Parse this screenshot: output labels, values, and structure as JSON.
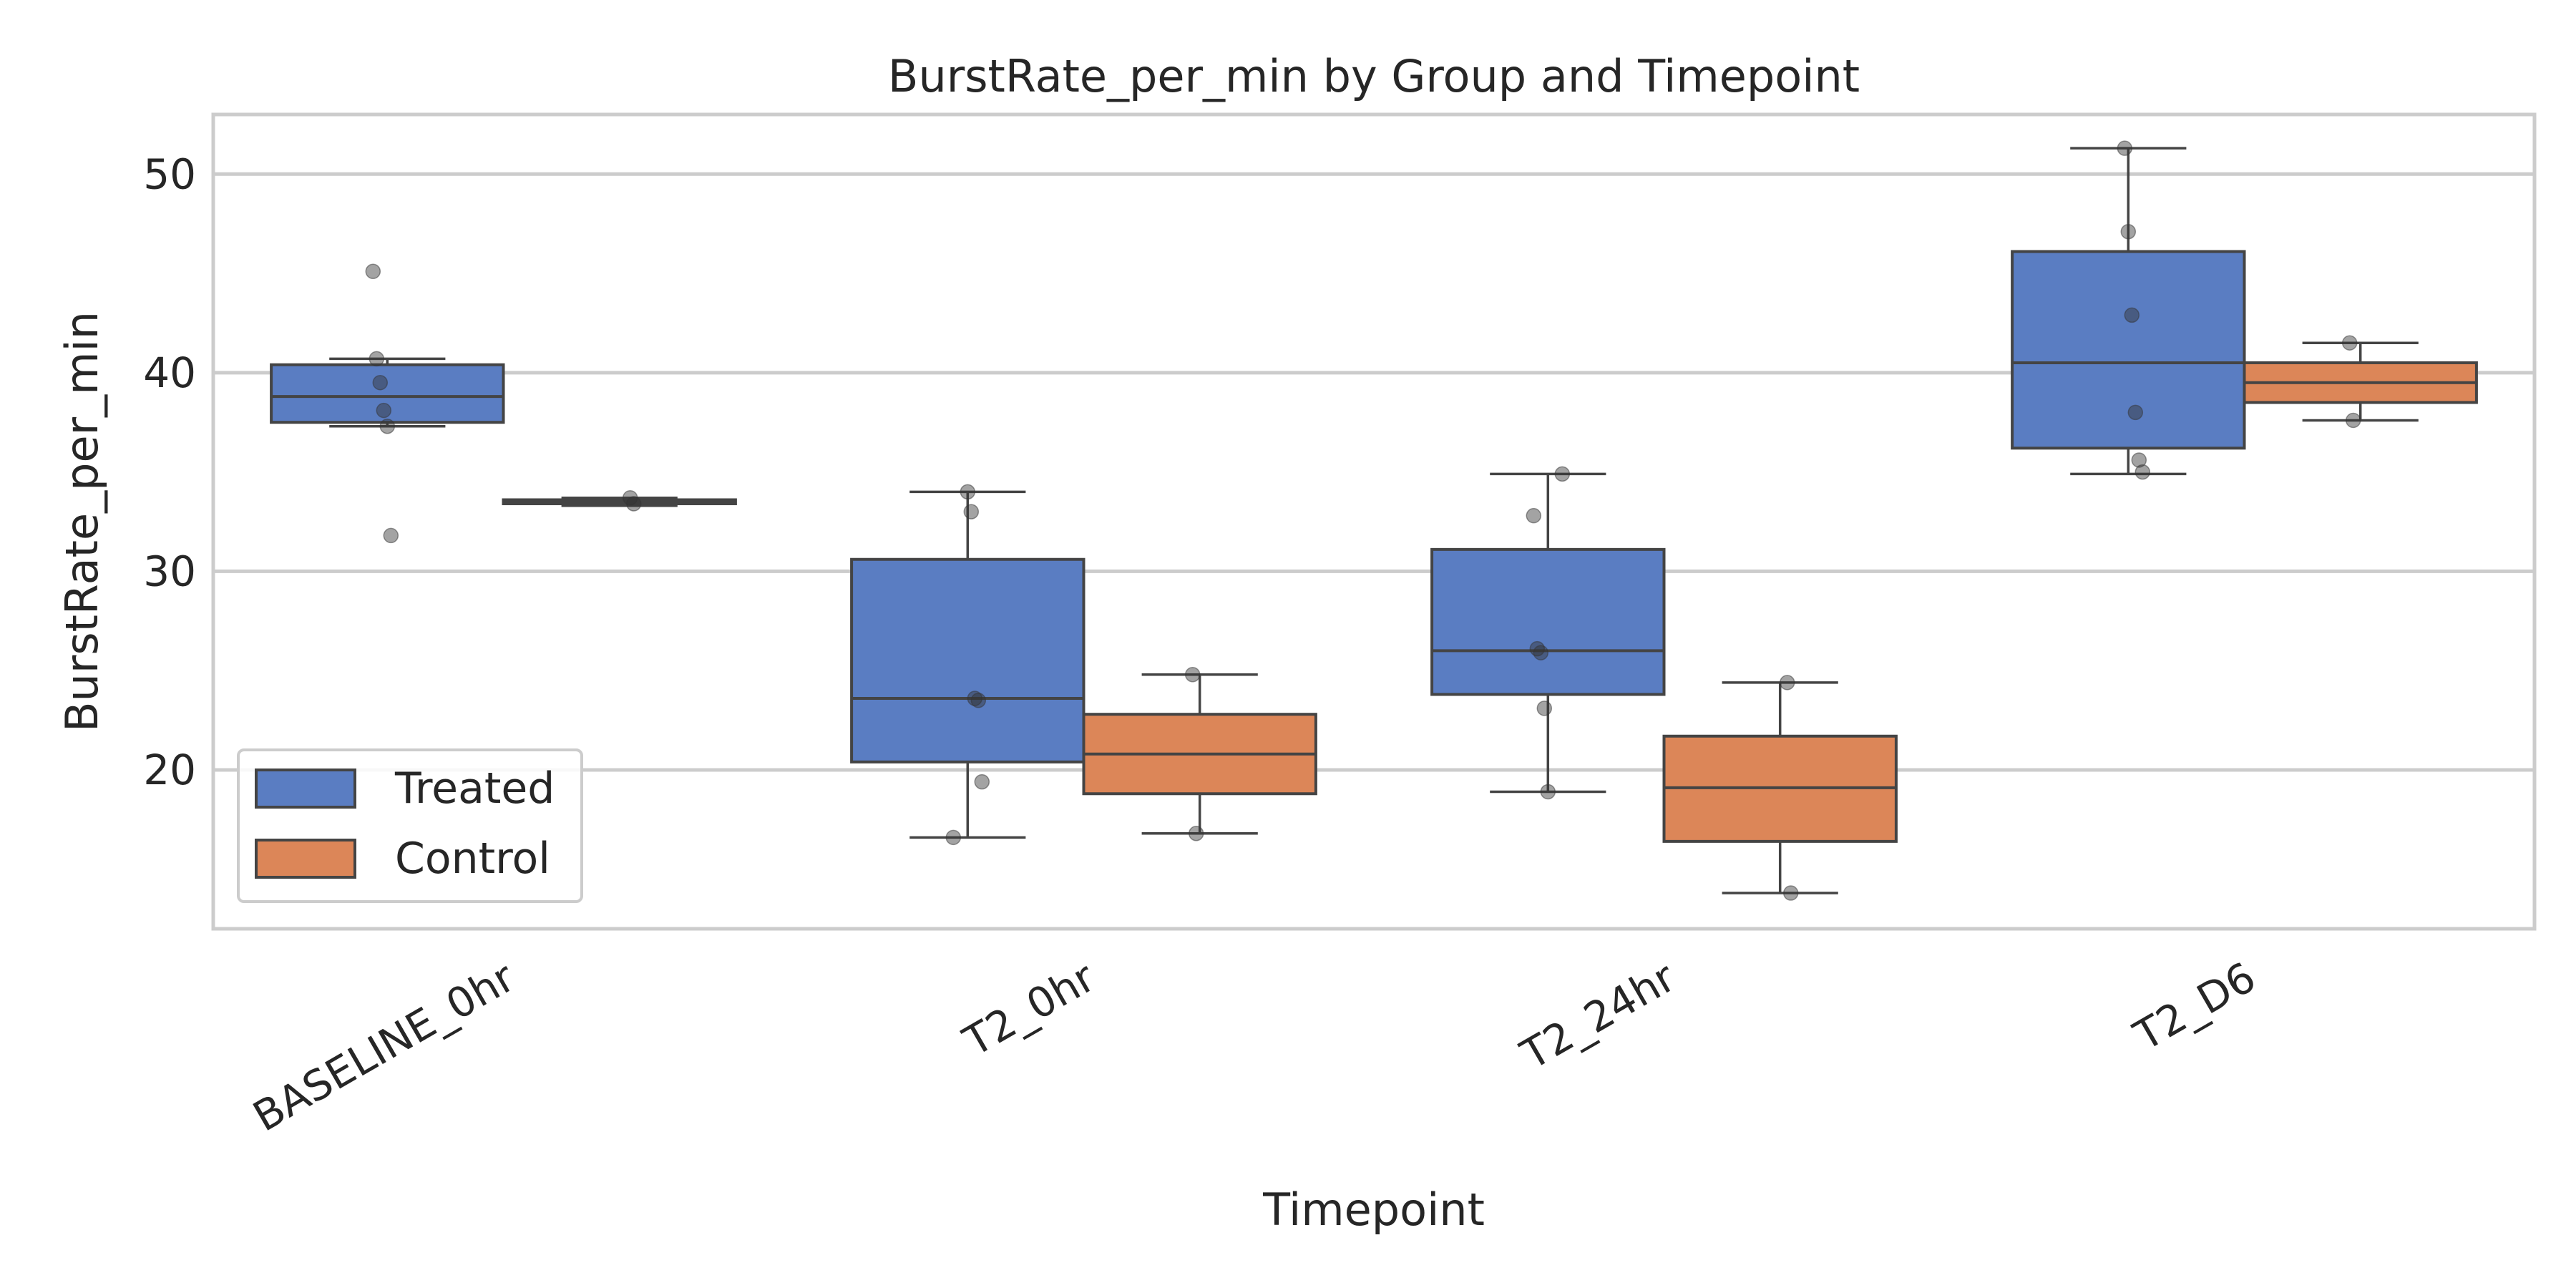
{
  "chart_data": {
    "type": "box",
    "title": "BurstRate_per_min by Group and Timepoint",
    "xlabel": "Timepoint",
    "ylabel": "BurstRate_per_min",
    "ylim": [
      12,
      53
    ],
    "yticks": [
      20,
      30,
      40,
      50
    ],
    "grid": true,
    "legend_position": "lower-left",
    "categories": [
      "BASELINE_0hr",
      "T2_0hr",
      "T2_24hr",
      "T2_D6"
    ],
    "series": [
      {
        "name": "Treated",
        "color": "#5a7dc2",
        "boxes": [
          {
            "q1": 37.5,
            "median": 38.8,
            "q3": 40.4,
            "whisker_low": 37.3,
            "whisker_high": 40.7,
            "points": [
              45.1,
              40.7,
              39.5,
              38.1,
              37.3,
              31.8
            ]
          },
          {
            "q1": 20.4,
            "median": 23.6,
            "q3": 30.6,
            "whisker_low": 16.6,
            "whisker_high": 34.0,
            "points": [
              34.0,
              33.0,
              23.6,
              23.5,
              19.4,
              16.6
            ]
          },
          {
            "q1": 23.8,
            "median": 26.0,
            "q3": 31.1,
            "whisker_low": 18.9,
            "whisker_high": 34.9,
            "points": [
              34.9,
              32.8,
              26.1,
              25.9,
              23.1,
              18.9
            ]
          },
          {
            "q1": 36.2,
            "median": 40.5,
            "q3": 46.1,
            "whisker_low": 34.9,
            "whisker_high": 51.3,
            "points": [
              51.3,
              47.1,
              42.9,
              38.0,
              35.6,
              35.0
            ]
          }
        ]
      },
      {
        "name": "Control",
        "color": "#dc8658",
        "boxes": [
          {
            "q1": 33.4,
            "median": 33.5,
            "q3": 33.6,
            "whisker_low": 33.3,
            "whisker_high": 33.7,
            "points": [
              33.7,
              33.4
            ]
          },
          {
            "q1": 18.8,
            "median": 20.8,
            "q3": 22.8,
            "whisker_low": 16.8,
            "whisker_high": 24.8,
            "points": [
              24.8,
              16.8
            ]
          },
          {
            "q1": 16.4,
            "median": 19.1,
            "q3": 21.7,
            "whisker_low": 13.8,
            "whisker_high": 24.4,
            "points": [
              24.4,
              13.8
            ]
          },
          {
            "q1": 38.5,
            "median": 39.5,
            "q3": 40.5,
            "whisker_low": 37.6,
            "whisker_high": 41.5,
            "points": [
              41.5,
              37.6
            ]
          }
        ]
      }
    ]
  }
}
